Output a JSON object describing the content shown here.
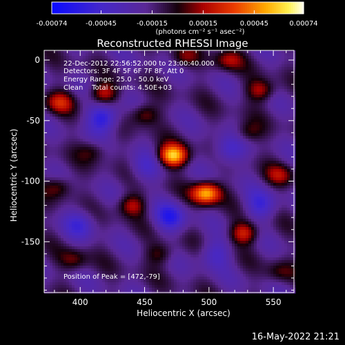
{
  "chart_data": {
    "type": "heatmap",
    "title": "Reconstructed RHESSI Image",
    "xlabel": "Heliocentric X (arcsec)",
    "ylabel": "Heliocentric Y (arcsec)",
    "xlim": [
      372,
      566
    ],
    "ylim": [
      -192,
      8
    ],
    "x_ticks": [
      400,
      450,
      500,
      550
    ],
    "y_ticks": [
      0,
      -50,
      -100,
      -150
    ],
    "colorbar": {
      "range": [
        -0.00074,
        0.00074
      ],
      "ticks": [
        "-0.00074",
        "-0.00045",
        "-0.00015",
        "0.00015",
        "0.00045",
        "0.00074"
      ],
      "unit_label": "(photons cm⁻² s⁻¹ asec⁻²)"
    },
    "annotations": {
      "time_range": "22-Dec-2012 22:56:52.000 to 23:00:40.000",
      "detectors": "Detectors: 3F 4F 5F 6F 7F 8F, Att 0",
      "energy": "Energy Range: 25.0 - 50.0 keV",
      "clean": "Clean    Total counts: 4.50E+03",
      "peak": "Position of Peak = [472,-79]"
    },
    "peak_position": [
      472,
      -79
    ],
    "blobs": [
      {
        "x": 472,
        "y": -79,
        "amp": 1.0
      },
      {
        "x": 498,
        "y": -110,
        "amp": 0.95
      },
      {
        "x": 527,
        "y": -143,
        "amp": 0.55
      },
      {
        "x": 418,
        "y": -28,
        "amp": 0.5
      },
      {
        "x": 384,
        "y": -35,
        "amp": 0.45
      },
      {
        "x": 450,
        "y": -45,
        "amp": 0.4
      },
      {
        "x": 540,
        "y": -25,
        "amp": 0.45
      },
      {
        "x": 515,
        "y": 0,
        "amp": 0.4
      },
      {
        "x": 440,
        "y": -120,
        "amp": 0.45
      },
      {
        "x": 383,
        "y": -105,
        "amp": 0.35
      },
      {
        "x": 462,
        "y": -160,
        "amp": 0.3
      },
      {
        "x": 555,
        "y": -95,
        "amp": 0.35
      },
      {
        "x": 395,
        "y": -165,
        "amp": 0.3
      },
      {
        "x": 530,
        "y": -60,
        "amp": 0.3
      },
      {
        "x": 555,
        "y": -175,
        "amp": 0.25
      },
      {
        "x": 410,
        "y": -75,
        "amp": 0.25
      },
      {
        "x": 480,
        "y": 2,
        "amp": 0.3
      }
    ],
    "negative_blobs": [
      {
        "x": 418,
        "y": -48,
        "amp": 0.6
      },
      {
        "x": 470,
        "y": -130,
        "amp": 0.5
      },
      {
        "x": 515,
        "y": -75,
        "amp": 0.4
      },
      {
        "x": 400,
        "y": -135,
        "amp": 0.35
      },
      {
        "x": 540,
        "y": -120,
        "amp": 0.4
      },
      {
        "x": 450,
        "y": -90,
        "amp": 0.3
      },
      {
        "x": 505,
        "y": -160,
        "amp": 0.35
      }
    ]
  },
  "footer_date": "16-May-2022 21:21"
}
